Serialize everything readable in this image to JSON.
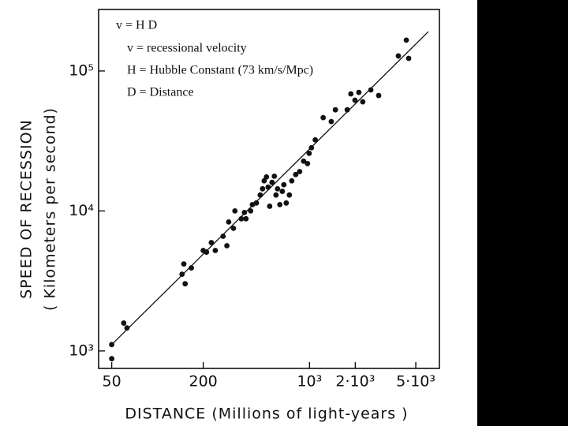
{
  "chart_data": {
    "type": "scatter",
    "annotations": [
      "v = H D",
      "v = recessional velocity",
      "H = Hubble Constant (73 km/s/Mpc)",
      "D = Distance"
    ],
    "xlabel": "DISTANCE (Millions of light-years )",
    "ylabel": [
      "SPEED OF RECESSION",
      "( Kilometers per second)"
    ],
    "xscale": "log",
    "yscale": "log",
    "xlim": [
      41,
      7150
    ],
    "ylim": [
      750,
      275000
    ],
    "xticks": [
      50,
      200,
      {
        "value": 1000,
        "label": "10³"
      },
      {
        "value": 2000,
        "label": "2·10³"
      },
      {
        "value": 5000,
        "label": "5·10³"
      }
    ],
    "yticks": [
      {
        "value": 1000,
        "label": "10³"
      },
      {
        "value": 10000,
        "label": "10⁴"
      },
      {
        "value": 100000,
        "label": "10⁵"
      }
    ],
    "color": "#111111",
    "x": [
      50,
      50,
      60,
      63,
      145,
      149,
      152,
      167,
      200,
      210,
      226,
      240,
      270,
      286,
      294,
      316,
      323,
      356,
      373,
      382,
      410,
      421,
      447,
      474,
      491,
      503,
      521,
      534,
      547,
      567,
      587,
      602,
      616,
      638,
      662,
      678,
      703,
      737,
      764,
      811,
      861,
      914,
      970,
      995,
      1030,
      1090,
      1230,
      1390,
      1480,
      1770,
      1870,
      1990,
      2110,
      2240,
      2530,
      2850,
      3840,
      4330,
      4490
    ],
    "values": [
      1110,
      880,
      1580,
      1460,
      3530,
      4180,
      3020,
      3920,
      5220,
      5080,
      5940,
      5220,
      6590,
      5640,
      8340,
      7520,
      10000,
      8790,
      9750,
      8790,
      10000,
      11100,
      11400,
      13000,
      14400,
      16400,
      17500,
      14800,
      10800,
      16000,
      17700,
      13000,
      14400,
      11100,
      13800,
      15400,
      11400,
      13000,
      16400,
      18200,
      19100,
      22700,
      21800,
      25800,
      28300,
      32200,
      46400,
      43500,
      52800,
      52800,
      68600,
      61800,
      70300,
      60200,
      73200,
      66800,
      128000,
      166000,
      123000
    ],
    "trend": {
      "x": [
        50,
        6050
      ],
      "y": [
        1110,
        191000
      ]
    }
  }
}
